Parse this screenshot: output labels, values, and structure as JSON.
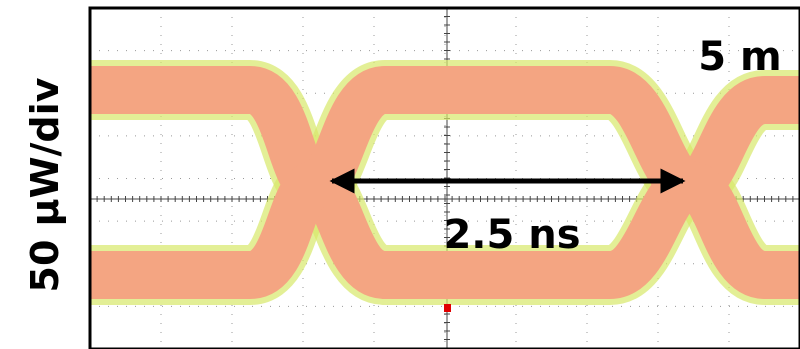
{
  "y_axis_label": "50 μW/div",
  "length_label": "5 m",
  "period_label": "2.5 ns"
}
